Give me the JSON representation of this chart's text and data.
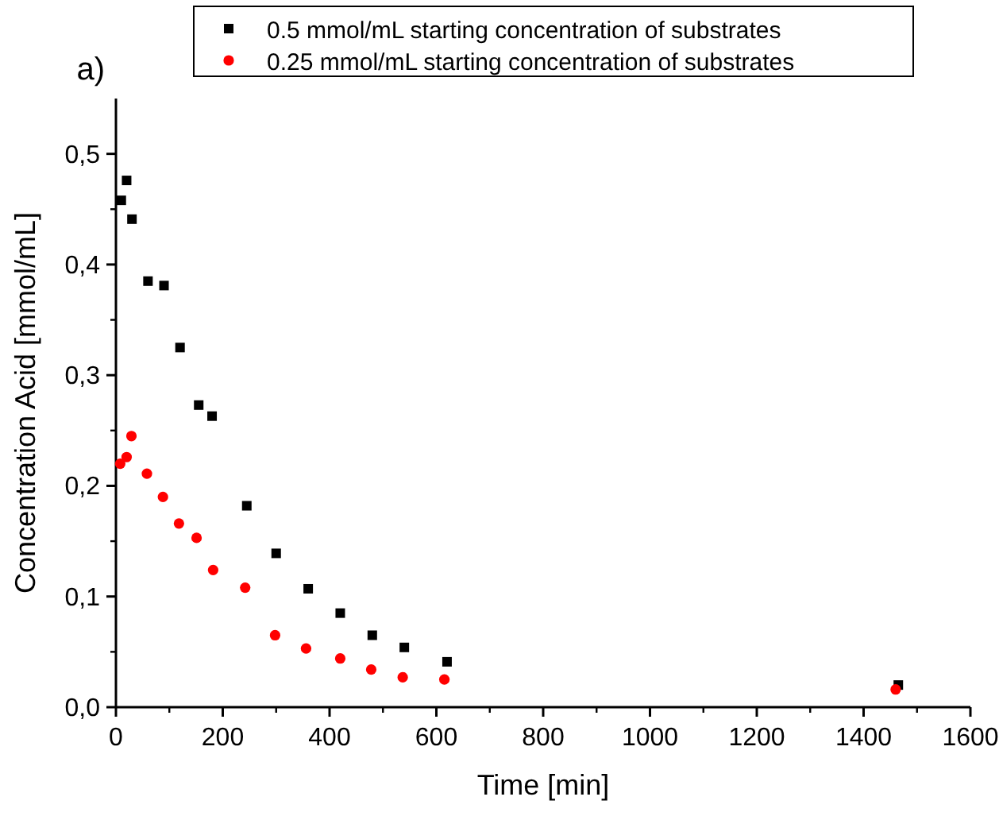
{
  "chart_data": {
    "type": "scatter",
    "xlabel": "Time [min]",
    "ylabel": "Concentration Acid [mmol/mL]",
    "annotations": [
      "a)"
    ],
    "xlim": [
      0,
      1600
    ],
    "xticks": [
      0,
      200,
      400,
      600,
      800,
      1000,
      1200,
      1400,
      1600
    ],
    "ylim": [
      0,
      0.55
    ],
    "yticks": [
      {
        "value": 0,
        "label": "0,0"
      },
      {
        "value": 0.1,
        "label": "0,1"
      },
      {
        "value": 0.2,
        "label": "0,2"
      },
      {
        "value": 0.3,
        "label": "0,3"
      },
      {
        "value": 0.4,
        "label": "0,4"
      },
      {
        "value": 0.5,
        "label": "0,5"
      }
    ],
    "grid": false,
    "legend": "top",
    "series": [
      {
        "name": "0.5 mmol/mL starting concentration of substrates",
        "color": "#000000",
        "marker": "square",
        "x": [
          10,
          20,
          30,
          60,
          90,
          120,
          155,
          180,
          245,
          300,
          360,
          420,
          480,
          540,
          620,
          1465
        ],
        "values": [
          0.458,
          0.476,
          0.441,
          0.385,
          0.381,
          0.325,
          0.273,
          0.263,
          0.182,
          0.139,
          0.107,
          0.085,
          0.065,
          0.054,
          0.041,
          0.02
        ]
      },
      {
        "name": "0.25 mmol/mL starting concentration of substrates",
        "color": "#ff0000",
        "marker": "circle",
        "x": [
          8,
          20,
          29,
          58,
          88,
          118,
          151,
          182,
          242,
          298,
          356,
          420,
          478,
          537,
          615,
          1460
        ],
        "values": [
          0.22,
          0.226,
          0.245,
          0.211,
          0.19,
          0.166,
          0.153,
          0.124,
          0.108,
          0.065,
          0.053,
          0.044,
          0.034,
          0.027,
          0.025,
          0.016
        ]
      }
    ]
  }
}
